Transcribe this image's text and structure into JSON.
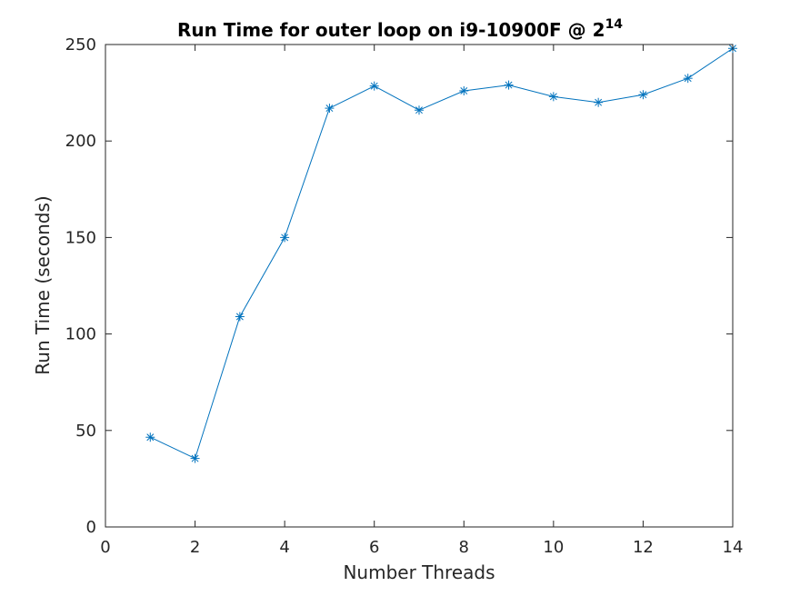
{
  "chart_data": {
    "type": "line",
    "title": {
      "main": "Run Time for outer loop on i9-10900F @ 2",
      "superscript": "14"
    },
    "xlabel": "Number Threads",
    "ylabel": "Run Time (seconds)",
    "xlim": [
      0,
      14
    ],
    "ylim": [
      0,
      250
    ],
    "xticks": [
      0,
      2,
      4,
      6,
      8,
      10,
      12,
      14
    ],
    "yticks": [
      0,
      50,
      100,
      150,
      200,
      250
    ],
    "grid": false,
    "marker": "asterisk",
    "line_color": "#0072BD",
    "series": [
      {
        "x": [
          1,
          2,
          3,
          4,
          5,
          6,
          7,
          8,
          9,
          10,
          11,
          12,
          13,
          14
        ],
        "values": [
          46.5,
          35.5,
          109,
          150,
          217,
          228.5,
          216,
          226,
          229,
          223,
          220,
          224,
          232.5,
          248
        ]
      }
    ]
  }
}
